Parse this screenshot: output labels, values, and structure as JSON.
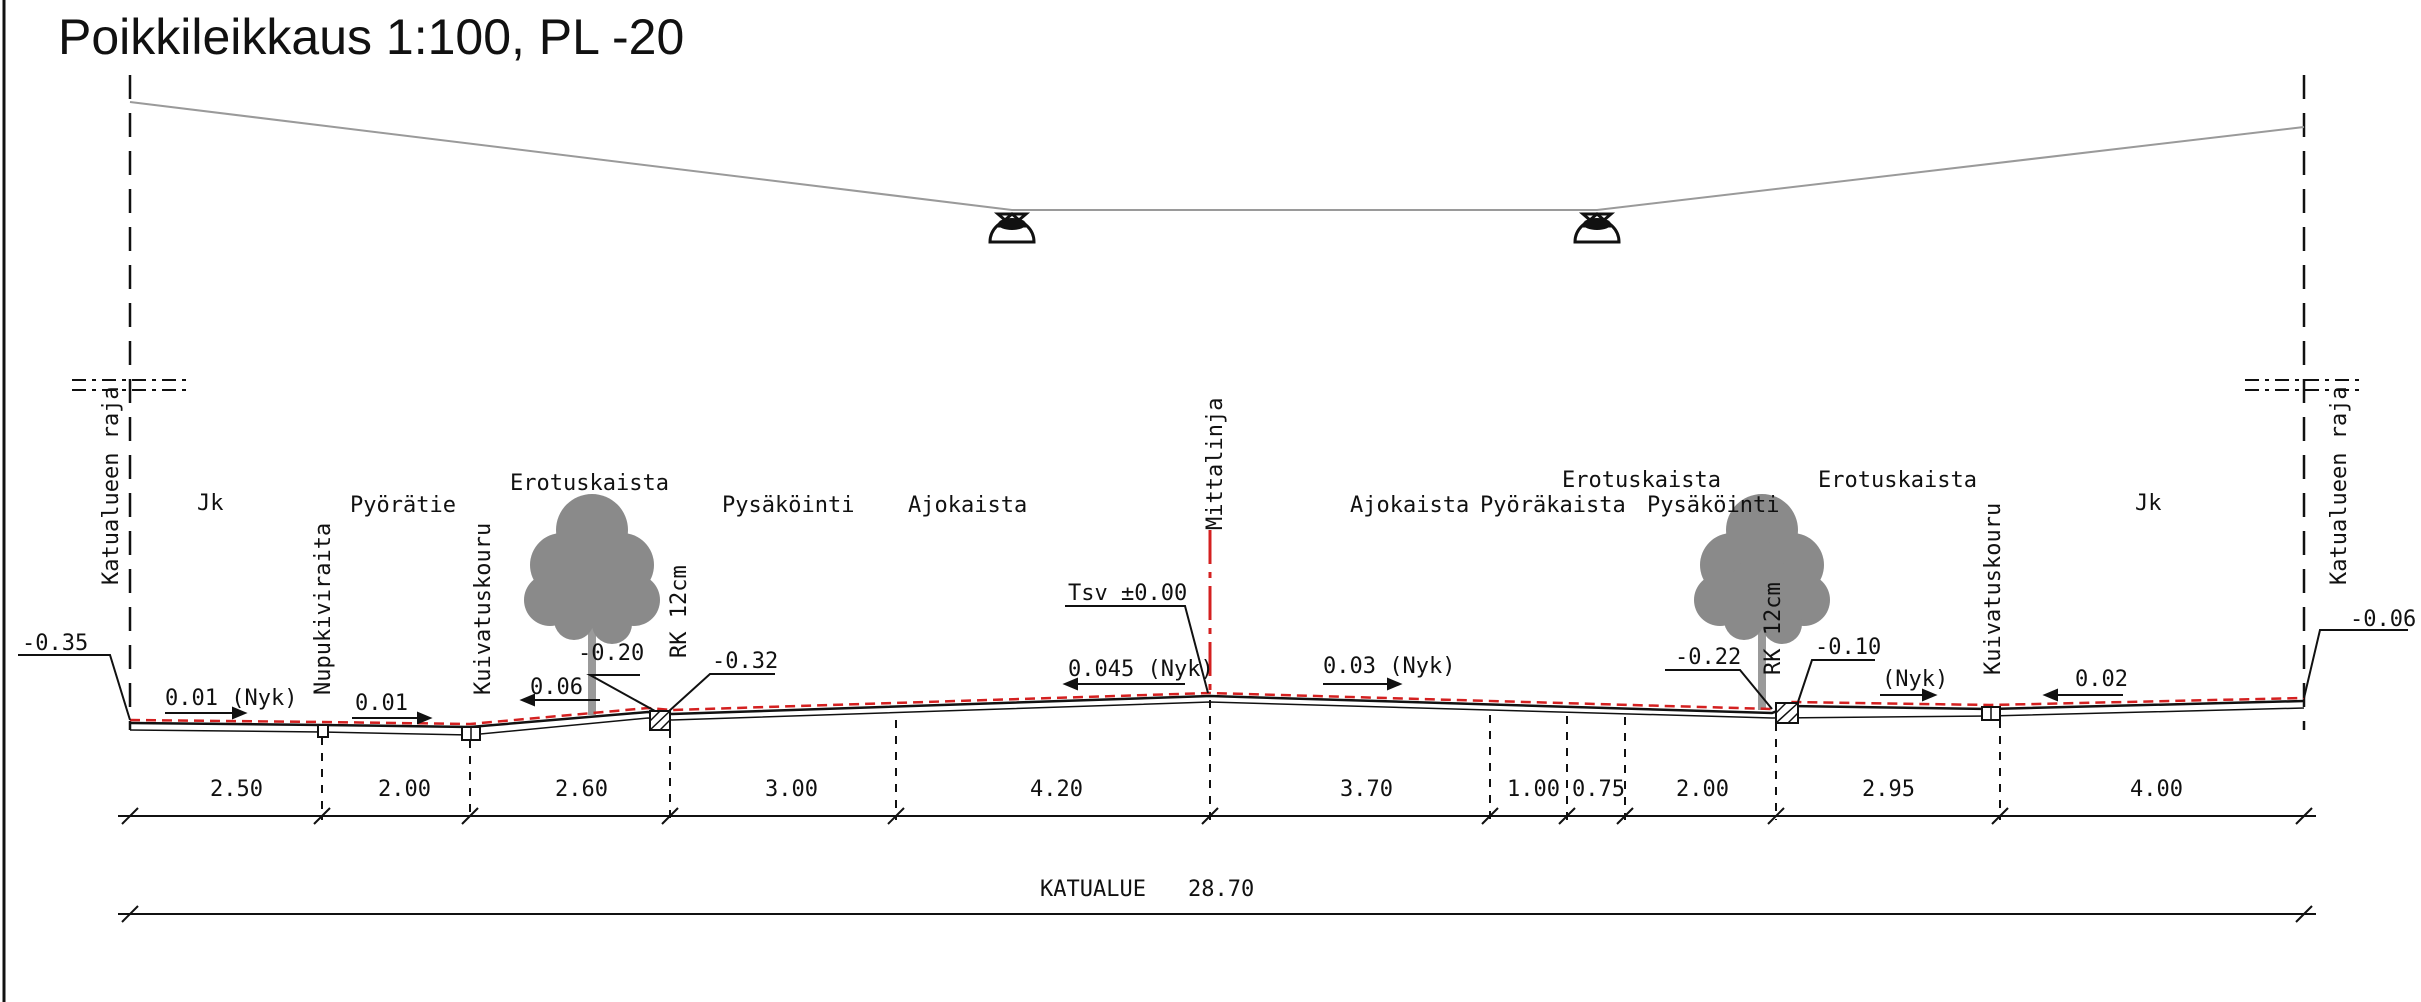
{
  "title": "Poikkileikkaus 1:100, PL -20",
  "colors": {
    "line": "#111111",
    "accent": "#d42020",
    "tree": "#8f8f8f",
    "pole": "#9a9a9a"
  },
  "zones": [
    "Jk",
    "Pyörätie",
    "Erotuskaista",
    "Pysäköinti",
    "Ajokaista",
    "Ajokaista",
    "Pyöräkaista",
    "Erotuskaista",
    "Pysäköinti",
    "Erotuskaista",
    "Jk"
  ],
  "vertical_labels": {
    "katualue_left": "Katualueen raja",
    "katualue_right": "Katualueen raja",
    "nupukiviraita": "Nupukiviraita",
    "kuivatus_left": "Kuivatuskouru",
    "kuivatus_right": "Kuivatuskouru",
    "rk_left": "RK 12cm",
    "rk_right": "RK 12cm",
    "mittalinja": "Mittalinja"
  },
  "levels": {
    "left_edge": "-0.35",
    "right_edge": "-0.06",
    "curb_left_top": "-0.20",
    "curb_left_bottom": "-0.32",
    "curb_right": "-0.22",
    "curb_right_top": "-0.10",
    "tsv": "Tsv ±0.00"
  },
  "slopes": {
    "jk_left": "0.01 (Nyk)",
    "pyoratie": "0.01",
    "erotus_left": "0.06",
    "ajorata_left": "0.045 (Nyk)",
    "ajorata_right": "0.03 (Nyk)",
    "erotus_right": "(Nyk)",
    "jk_right": "0.02"
  },
  "dimensions": [
    "2.50",
    "2.00",
    "2.60",
    "3.00",
    "4.20",
    "3.70",
    "1.00",
    "0.75",
    "2.00",
    "2.95",
    "4.00"
  ],
  "total": {
    "label": "KATUALUE",
    "value": "28.70"
  }
}
